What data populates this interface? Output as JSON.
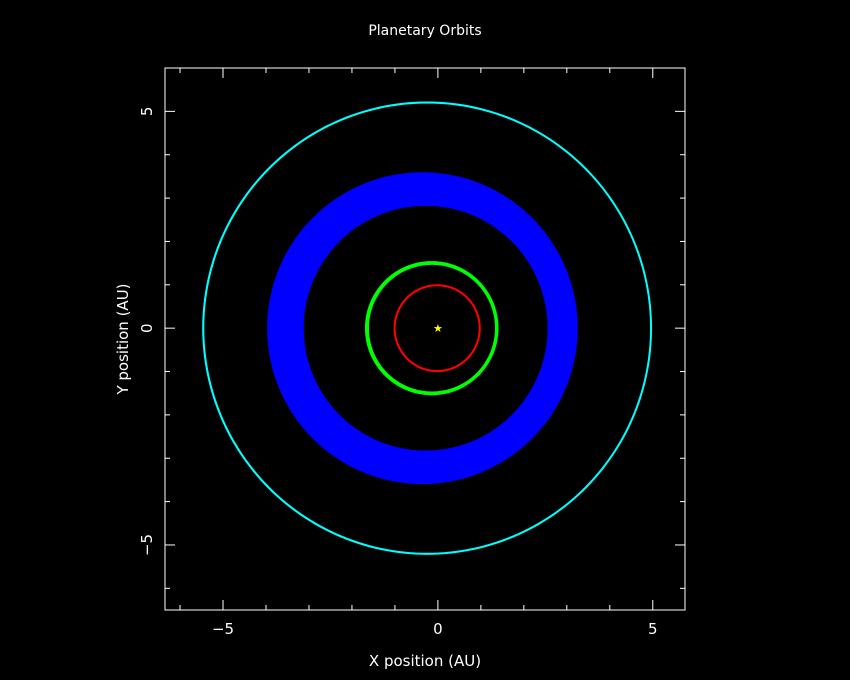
{
  "chart_data": {
    "type": "line",
    "title": "Planetary Orbits",
    "xlabel": "X position (AU)",
    "ylabel": "Y position (AU)",
    "xlim": [
      -6.35,
      5.75
    ],
    "ylim": [
      -6.5,
      6.0
    ],
    "xticks": [
      -5,
      0,
      5
    ],
    "yticks": [
      -5,
      0,
      5
    ],
    "grid": false,
    "background": "#000000",
    "axis_color": "#ffffff",
    "star": {
      "x": 0.0,
      "y": 0.0,
      "color": "#ffff00"
    },
    "series": [
      {
        "color": "#ff0000",
        "a": 1.0,
        "e": 0.017,
        "ring": [
          0.98,
          1.0
        ]
      },
      {
        "color": "#00ff00",
        "a": 1.52,
        "e": 0.093,
        "ring": [
          1.48,
          1.54
        ]
      },
      {
        "color": "#0000ff",
        "a": 3.2,
        "e": 0.1,
        "ring": [
          2.85,
          3.6
        ]
      },
      {
        "color": "#00ffff",
        "a": 5.2,
        "e": 0.048,
        "ring": [
          5.2,
          5.22
        ]
      }
    ]
  }
}
